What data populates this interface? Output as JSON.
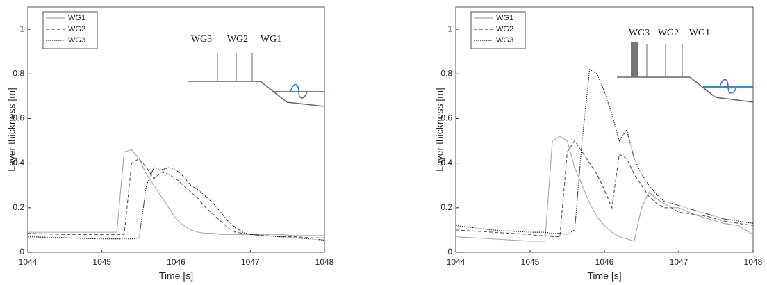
{
  "chart_data": [
    {
      "type": "line",
      "x_label": "Time [s]",
      "y_label": "Layer thickness [m]",
      "xlim": [
        1044,
        1048
      ],
      "xticks": [
        1044,
        1045,
        1046,
        1047,
        1048
      ],
      "ylim": [
        0,
        1.1
      ],
      "yticks": [
        0,
        0.2,
        0.4,
        0.6,
        0.8,
        1
      ],
      "legend": "upper left",
      "grid": false,
      "annotations": [
        "WG3",
        "WG2",
        "WG1"
      ],
      "x": [
        1044,
        1044.5,
        1045,
        1045.1,
        1045.2,
        1045.3,
        1045.4,
        1045.5,
        1045.6,
        1045.7,
        1045.8,
        1045.9,
        1046,
        1046.1,
        1046.2,
        1046.3,
        1046.4,
        1046.5,
        1046.6,
        1046.7,
        1046.8,
        1046.9,
        1047,
        1047.2,
        1047.4,
        1047.6,
        1047.8,
        1048
      ],
      "series": [
        {
          "name": "WG1",
          "color": "#a6a6a6",
          "dash": "solid",
          "values": [
            0.09,
            0.09,
            0.09,
            0.09,
            0.09,
            0.45,
            0.46,
            0.42,
            0.35,
            0.3,
            0.25,
            0.2,
            0.15,
            0.12,
            0.1,
            0.09,
            0.085,
            0.085,
            0.08,
            0.08,
            0.08,
            0.08,
            0.08,
            0.08,
            0.08,
            0.075,
            0.075,
            0.075
          ]
        },
        {
          "name": "WG2",
          "color": "#555555",
          "dash": "dashed",
          "values": [
            0.085,
            0.08,
            0.08,
            0.08,
            0.08,
            0.08,
            0.4,
            0.42,
            0.38,
            0.33,
            0.36,
            0.35,
            0.33,
            0.3,
            0.27,
            0.24,
            0.2,
            0.17,
            0.14,
            0.11,
            0.09,
            0.085,
            0.08,
            0.075,
            0.07,
            0.07,
            0.065,
            0.065
          ]
        },
        {
          "name": "WG3",
          "color": "#111111",
          "dash": "dotted",
          "values": [
            0.07,
            0.065,
            0.06,
            0.06,
            0.06,
            0.06,
            0.06,
            0.065,
            0.3,
            0.38,
            0.37,
            0.38,
            0.37,
            0.34,
            0.3,
            0.28,
            0.25,
            0.22,
            0.18,
            0.14,
            0.11,
            0.09,
            0.08,
            0.075,
            0.07,
            0.065,
            0.06,
            0.055
          ]
        }
      ]
    },
    {
      "type": "line",
      "x_label": "Time [s]",
      "y_label": "Layer thickness [m]",
      "xlim": [
        1044,
        1048
      ],
      "xticks": [
        1044,
        1045,
        1046,
        1047,
        1048
      ],
      "ylim": [
        0,
        1.1
      ],
      "yticks": [
        0,
        0.2,
        0.4,
        0.6,
        0.8,
        1
      ],
      "legend": "upper left",
      "grid": false,
      "annotations": [
        "WG3",
        "WG2",
        "WG1"
      ],
      "x": [
        1044,
        1044.5,
        1045,
        1045.1,
        1045.2,
        1045.3,
        1045.4,
        1045.5,
        1045.6,
        1045.7,
        1045.8,
        1045.9,
        1046,
        1046.1,
        1046.2,
        1046.3,
        1046.4,
        1046.5,
        1046.6,
        1046.7,
        1046.8,
        1046.9,
        1047,
        1047.2,
        1047.4,
        1047.6,
        1047.8,
        1048
      ],
      "series": [
        {
          "name": "WG1",
          "color": "#a6a6a6",
          "dash": "solid",
          "values": [
            0.07,
            0.06,
            0.05,
            0.05,
            0.05,
            0.5,
            0.52,
            0.5,
            0.38,
            0.3,
            0.22,
            0.16,
            0.12,
            0.09,
            0.07,
            0.06,
            0.05,
            0.2,
            0.27,
            0.24,
            0.22,
            0.2,
            0.2,
            0.17,
            0.15,
            0.13,
            0.12,
            0.08
          ]
        },
        {
          "name": "WG2",
          "color": "#555555",
          "dash": "dashed",
          "values": [
            0.1,
            0.09,
            0.08,
            0.075,
            0.075,
            0.07,
            0.07,
            0.45,
            0.5,
            0.45,
            0.4,
            0.35,
            0.28,
            0.2,
            0.44,
            0.42,
            0.35,
            0.3,
            0.25,
            0.22,
            0.2,
            0.2,
            0.18,
            0.17,
            0.16,
            0.14,
            0.13,
            0.12
          ]
        },
        {
          "name": "WG3",
          "color": "#111111",
          "dash": "dotted",
          "values": [
            0.12,
            0.1,
            0.09,
            0.09,
            0.09,
            0.085,
            0.085,
            0.08,
            0.1,
            0.5,
            0.82,
            0.8,
            0.72,
            0.62,
            0.5,
            0.55,
            0.42,
            0.35,
            0.3,
            0.26,
            0.23,
            0.22,
            0.21,
            0.19,
            0.17,
            0.15,
            0.14,
            0.13
          ]
        }
      ]
    }
  ]
}
